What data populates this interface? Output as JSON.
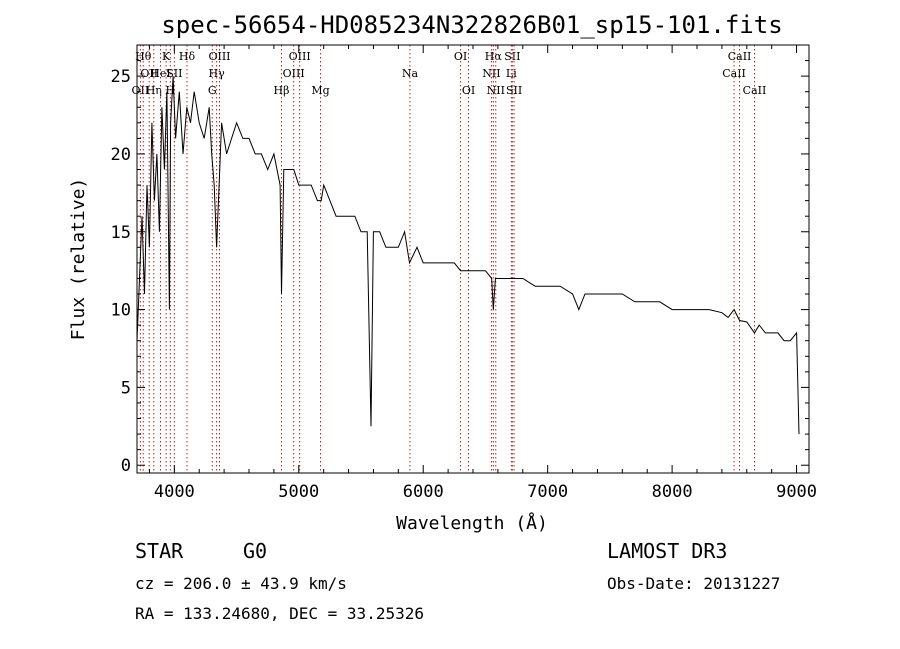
{
  "chart_data": {
    "type": "line",
    "title": "spec-56654-HD085234N322826B01_sp15-101.fits",
    "xlabel": "Wavelength (Å)",
    "ylabel": "Flux (relative)",
    "xlim": [
      3700,
      9100
    ],
    "ylim": [
      -0.5,
      27
    ],
    "xticks": [
      4000,
      5000,
      6000,
      7000,
      8000,
      9000
    ],
    "yticks": [
      0,
      5,
      10,
      15,
      20,
      25
    ],
    "series": [
      {
        "name": "flux",
        "x": [
          3700,
          3720,
          3740,
          3760,
          3780,
          3800,
          3820,
          3840,
          3860,
          3880,
          3900,
          3920,
          3940,
          3960,
          3970,
          3990,
          4010,
          4040,
          4070,
          4100,
          4130,
          4160,
          4200,
          4240,
          4280,
          4300,
          4320,
          4340,
          4380,
          4420,
          4460,
          4500,
          4550,
          4600,
          4650,
          4700,
          4750,
          4800,
          4850,
          4861,
          4880,
          4920,
          4960,
          5000,
          5050,
          5100,
          5150,
          5180,
          5200,
          5250,
          5300,
          5350,
          5400,
          5450,
          5500,
          5550,
          5580,
          5600,
          5650,
          5700,
          5750,
          5800,
          5850,
          5890,
          5950,
          6000,
          6050,
          6100,
          6150,
          6200,
          6250,
          6300,
          6350,
          6400,
          6450,
          6500,
          6550,
          6563,
          6580,
          6620,
          6700,
          6800,
          6900,
          7000,
          7100,
          7200,
          7250,
          7300,
          7400,
          7500,
          7600,
          7700,
          7800,
          7900,
          8000,
          8050,
          8100,
          8200,
          8300,
          8400,
          8450,
          8498,
          8542,
          8600,
          8662,
          8700,
          8750,
          8800,
          8850,
          8900,
          8950,
          9000,
          9020
        ],
        "y": [
          8,
          12,
          16,
          11,
          18,
          14,
          22,
          17,
          20,
          15,
          23,
          19,
          24,
          10,
          22,
          25,
          21,
          24,
          20,
          23,
          22,
          24,
          22,
          21,
          23,
          20,
          18,
          14,
          22,
          20,
          21,
          22,
          21,
          21,
          20,
          20,
          19,
          20,
          18,
          11,
          19,
          19,
          19,
          18,
          18,
          18,
          17,
          17,
          18,
          17,
          16,
          16,
          16,
          16,
          15,
          15,
          2.5,
          15,
          15,
          14,
          14,
          14,
          15,
          13,
          14,
          13,
          13,
          13,
          13,
          13,
          13,
          12.5,
          12.5,
          12.5,
          12.5,
          12.5,
          12,
          10,
          12,
          12,
          12,
          12,
          11.5,
          11.5,
          11.5,
          11,
          10,
          11,
          11,
          11,
          11,
          10.5,
          10.5,
          10.5,
          10,
          10,
          10,
          10,
          10,
          9.8,
          9.5,
          10,
          9.3,
          9.2,
          8.5,
          9,
          8.5,
          8.5,
          8.5,
          8,
          8,
          8.5,
          2
        ]
      }
    ],
    "lines": [
      {
        "wl": 3727,
        "label": "OII",
        "row": 2
      },
      {
        "wl": 3750,
        "label": "Hθ",
        "row": 0
      },
      {
        "wl": 3798,
        "label": "OII",
        "row": 1
      },
      {
        "wl": 3835,
        "label": "Hη",
        "row": 2
      },
      {
        "wl": 3889,
        "label": "HeI",
        "row": 1
      },
      {
        "wl": 3934,
        "label": "K",
        "row": 0
      },
      {
        "wl": 3968,
        "label": "H",
        "row": 2
      },
      {
        "wl": 4000,
        "label": "SII",
        "row": 1
      },
      {
        "wl": 4102,
        "label": "Hδ",
        "row": 0
      },
      {
        "wl": 4305,
        "label": "G",
        "row": 2
      },
      {
        "wl": 4340,
        "label": "Hγ",
        "row": 1
      },
      {
        "wl": 4363,
        "label": "OIII",
        "row": 0
      },
      {
        "wl": 4861,
        "label": "Hβ",
        "row": 2
      },
      {
        "wl": 4959,
        "label": "OIII",
        "row": 1
      },
      {
        "wl": 5007,
        "label": "OIII",
        "row": 0
      },
      {
        "wl": 5175,
        "label": "Mg",
        "row": 2
      },
      {
        "wl": 5893,
        "label": "Na",
        "row": 1
      },
      {
        "wl": 6300,
        "label": "OI",
        "row": 0
      },
      {
        "wl": 6364,
        "label": "OI",
        "row": 2
      },
      {
        "wl": 6548,
        "label": "NII",
        "row": 1
      },
      {
        "wl": 6563,
        "label": "Hα",
        "row": 0
      },
      {
        "wl": 6583,
        "label": "NII",
        "row": 2
      },
      {
        "wl": 6708,
        "label": "Li",
        "row": 1
      },
      {
        "wl": 6716,
        "label": "SII",
        "row": 0
      },
      {
        "wl": 6730,
        "label": "SII",
        "row": 2
      },
      {
        "wl": 8498,
        "label": "CaII",
        "row": 1
      },
      {
        "wl": 8542,
        "label": "CaII",
        "row": 0
      },
      {
        "wl": 8662,
        "label": "CaII",
        "row": 2
      }
    ]
  },
  "info": {
    "class": "STAR",
    "subclass": "G0",
    "survey": "LAMOST DR3",
    "cz": "cz = 206.0 ± 43.9 km/s",
    "obsdate": "Obs-Date: 20131227",
    "radec": "RA = 133.24680, DEC =  33.25326"
  },
  "colors": {
    "spectrum": "#000000",
    "lineMarker": "#b22222"
  }
}
